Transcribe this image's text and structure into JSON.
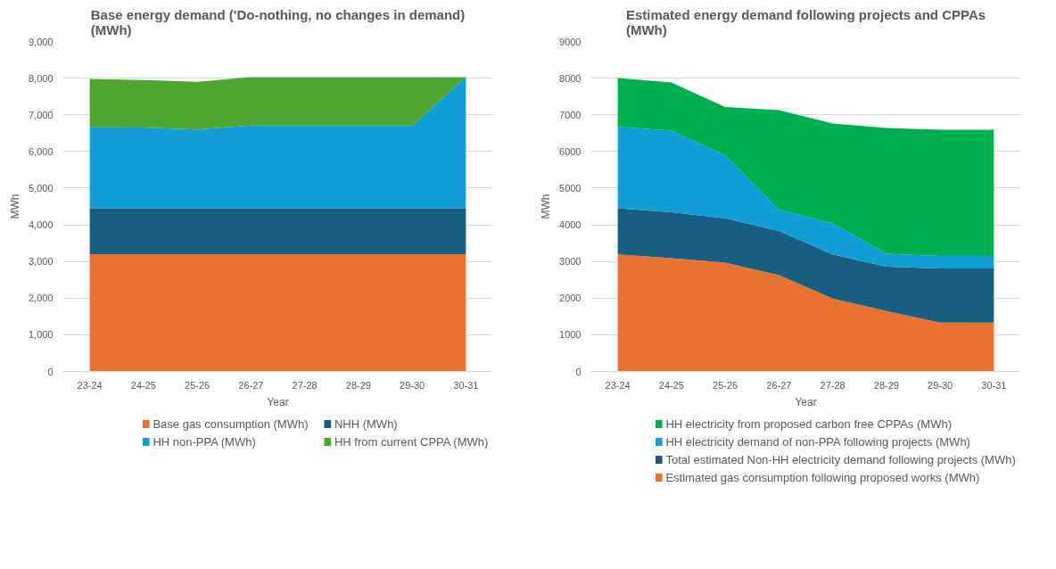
{
  "chart_data": [
    {
      "type": "area",
      "stacked": true,
      "title": "Base energy demand ('Do-nothing, no changes in demand) (MWh)",
      "xlabel": "Year",
      "ylabel": "MWh",
      "categories": [
        "23-24",
        "24-25",
        "25-26",
        "26-27",
        "27-28",
        "28-29",
        "29-30",
        "30-31"
      ],
      "ylim": [
        0,
        9000
      ],
      "yticks": [
        {
          "value": 0,
          "label": "0"
        },
        {
          "value": 1000,
          "label": "1,000"
        },
        {
          "value": 2000,
          "label": "2,000"
        },
        {
          "value": 3000,
          "label": "3,000"
        },
        {
          "value": 4000,
          "label": "4,000"
        },
        {
          "value": 5000,
          "label": "5,000"
        },
        {
          "value": 6000,
          "label": "6,000"
        },
        {
          "value": 7000,
          "label": "7,000"
        },
        {
          "value": 8000,
          "label": "8,000"
        },
        {
          "value": 9000,
          "label": "9,000"
        }
      ],
      "grid": "y",
      "legend": "bottom",
      "series": [
        {
          "name": "Base gas consumption (MWh)",
          "color": "#e87331",
          "values": [
            3200,
            3200,
            3200,
            3200,
            3200,
            3200,
            3200,
            3200
          ]
        },
        {
          "name": "NHH (MWh)",
          "color": "#175e80",
          "values": [
            1250,
            1250,
            1250,
            1250,
            1250,
            1250,
            1250,
            1250
          ]
        },
        {
          "name": "HH non-PPA (MWh)",
          "color": "#119dd6",
          "values": [
            2210,
            2200,
            2150,
            2260,
            2260,
            2260,
            2260,
            3580
          ]
        },
        {
          "name": "HH from current CPPA (MWh)",
          "color": "#4ea631",
          "values": [
            1320,
            1300,
            1300,
            1320,
            1320,
            1320,
            1320,
            0
          ]
        }
      ]
    },
    {
      "type": "area",
      "stacked": true,
      "title": "Estimated energy demand following projects and CPPAs (MWh)",
      "xlabel": "Year",
      "ylabel": "MWh",
      "categories": [
        "23-24",
        "24-25",
        "25-26",
        "26-27",
        "27-28",
        "28-29",
        "29-30",
        "30-31"
      ],
      "ylim": [
        0,
        9000
      ],
      "yticks": [
        0,
        1000,
        2000,
        3000,
        4000,
        5000,
        6000,
        7000,
        8000,
        9000
      ],
      "grid": "y",
      "legend": "bottom",
      "series": [
        {
          "name": "Estimated gas consumption following proposed works (MWh)",
          "color": "#e87331",
          "values": [
            3190,
            3090,
            2970,
            2630,
            1990,
            1650,
            1330,
            1330
          ]
        },
        {
          "name": "Total estimated Non-HH electricity demand following projects (MWh)",
          "color": "#175e80",
          "values": [
            1260,
            1250,
            1210,
            1200,
            1200,
            1210,
            1480,
            1480
          ]
        },
        {
          "name": "HH electricity demand of non-PPA following projects (MWh)",
          "color": "#119dd6",
          "values": [
            2220,
            2230,
            1710,
            580,
            850,
            350,
            340,
            340
          ]
        },
        {
          "name": "HH electricity from  proposed carbon free CPPAs (MWh)",
          "color": "#00b050",
          "values": [
            1330,
            1310,
            1320,
            2720,
            2720,
            3430,
            3440,
            3440
          ]
        }
      ]
    }
  ]
}
